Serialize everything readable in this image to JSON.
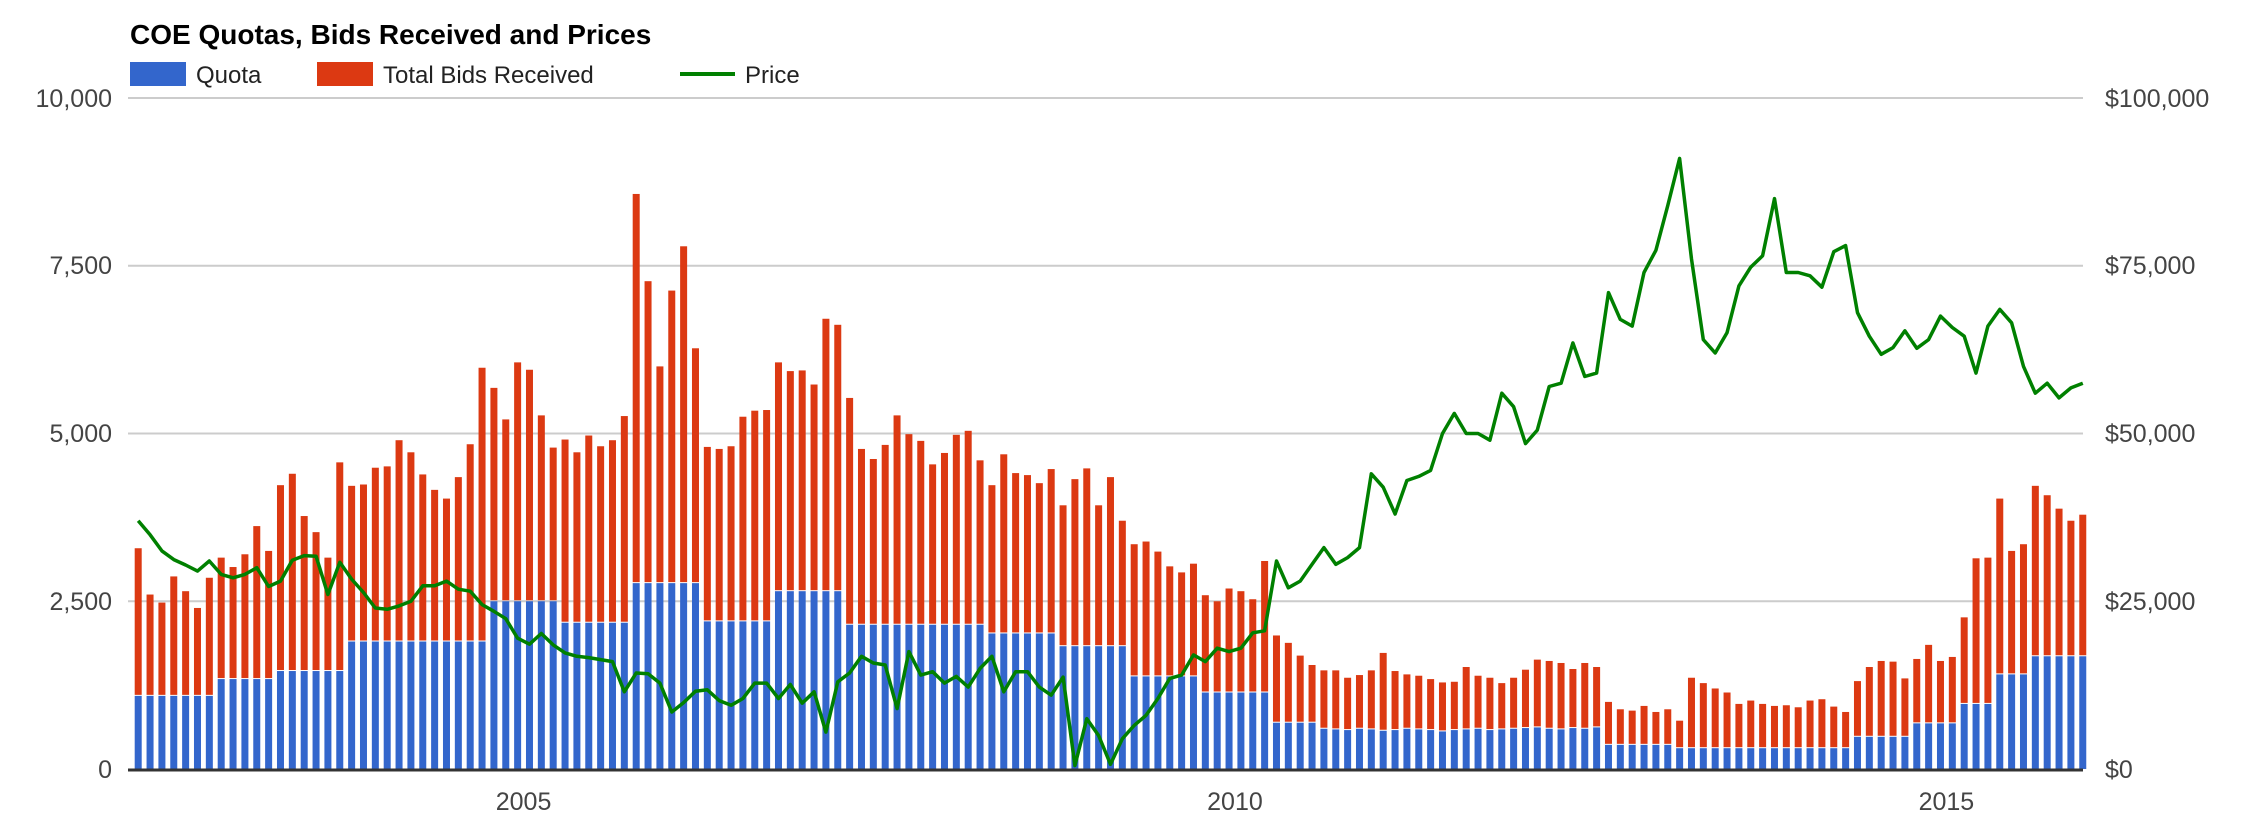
{
  "chart_data": {
    "type": "bar",
    "subtype": "stacked-bar-with-line-overlay",
    "title": "COE Quotas, Bids Received and Prices",
    "legend": {
      "placement": "top-left",
      "entries": [
        "Quota",
        "Total Bids Received",
        "Price"
      ]
    },
    "colors": {
      "quota": "#3366cc",
      "bids": "#dc3912",
      "price": "#008000",
      "grid": "#cccccc",
      "axis": "#333333"
    },
    "x": {
      "start": "2002-04",
      "interval": "monthly",
      "range": [
        2002.22,
        2015.96
      ],
      "tick_labels": [
        "2005",
        "2010",
        "2015"
      ],
      "tick_values": [
        2005,
        2010,
        2015
      ]
    },
    "y_left": {
      "label": "",
      "range": [
        0,
        10000
      ],
      "tick_labels": [
        "0",
        "2,500",
        "5,000",
        "7,500",
        "10,000"
      ],
      "tick_values": [
        0,
        2500,
        5000,
        7500,
        10000
      ]
    },
    "y_right": {
      "label": "",
      "range": [
        0,
        100000
      ],
      "tick_labels": [
        "$0",
        "$25,000",
        "$50,000",
        "$75,000",
        "$100,000"
      ],
      "tick_values": [
        0,
        25000,
        50000,
        75000,
        100000
      ]
    },
    "grid": true,
    "series": [
      {
        "name": "Quota",
        "axis": "left",
        "kind": "bar",
        "values": [
          1090,
          1090,
          1090,
          1090,
          1090,
          1090,
          1090,
          1340,
          1340,
          1340,
          1340,
          1340,
          1460,
          1460,
          1460,
          1460,
          1460,
          1460,
          1900,
          1900,
          1900,
          1900,
          1900,
          1900,
          1900,
          1900,
          1900,
          1900,
          1900,
          1900,
          2500,
          2500,
          2500,
          2500,
          2500,
          2500,
          2180,
          2180,
          2180,
          2180,
          2180,
          2180,
          2770,
          2770,
          2770,
          2770,
          2770,
          2770,
          2200,
          2200,
          2200,
          2200,
          2200,
          2200,
          2650,
          2650,
          2650,
          2650,
          2650,
          2650,
          2150,
          2150,
          2150,
          2150,
          2150,
          2150,
          2150,
          2150,
          2150,
          2150,
          2150,
          2150,
          2020,
          2020,
          2020,
          2020,
          2020,
          2020,
          1830,
          1830,
          1830,
          1830,
          1830,
          1830,
          1380,
          1380,
          1380,
          1380,
          1380,
          1380,
          1140,
          1140,
          1140,
          1140,
          1140,
          1140,
          690,
          690,
          690,
          690,
          600,
          590,
          580,
          600,
          590,
          570,
          580,
          600,
          590,
          580,
          560,
          580,
          590,
          600,
          580,
          590,
          600,
          610,
          620,
          600,
          590,
          610,
          600,
          620,
          360,
          360,
          360,
          360,
          360,
          360,
          310,
          310,
          310,
          310,
          310,
          310,
          310,
          310,
          310,
          310,
          310,
          310,
          310,
          310,
          310,
          480,
          480,
          480,
          480,
          480,
          680,
          680,
          680,
          680,
          970,
          970,
          970,
          1410,
          1410,
          1410,
          1680,
          1680,
          1680,
          1680,
          1680
        ]
      },
      {
        "name": "Total Bids Received",
        "axis": "left",
        "kind": "bar",
        "values": [
          3290,
          2600,
          2480,
          2870,
          2650,
          2400,
          2850,
          3150,
          3010,
          3200,
          3620,
          3250,
          4230,
          4400,
          3770,
          3530,
          3150,
          4570,
          4220,
          4240,
          4490,
          4510,
          4900,
          4720,
          4390,
          4160,
          4030,
          4350,
          4840,
          5980,
          5680,
          5210,
          6060,
          5950,
          5270,
          4790,
          4910,
          4720,
          4970,
          4810,
          4900,
          5260,
          8570,
          7270,
          6000,
          7130,
          7790,
          6270,
          4800,
          4770,
          4810,
          5250,
          5340,
          5350,
          6060,
          5930,
          5940,
          5730,
          6710,
          6620,
          5530,
          4770,
          4620,
          4830,
          5270,
          4990,
          4890,
          4540,
          4710,
          4980,
          5040,
          4600,
          4230,
          4690,
          4410,
          4380,
          4260,
          4470,
          3930,
          4320,
          4480,
          3930,
          4350,
          3700,
          3350,
          3390,
          3240,
          3020,
          2930,
          3060,
          2590,
          2500,
          2690,
          2650,
          2530,
          3100,
          1990,
          1880,
          1690,
          1550,
          1470,
          1470,
          1360,
          1400,
          1470,
          1730,
          1460,
          1410,
          1390,
          1340,
          1290,
          1300,
          1520,
          1390,
          1360,
          1280,
          1360,
          1480,
          1630,
          1610,
          1580,
          1490,
          1580,
          1520,
          1000,
          890,
          870,
          940,
          850,
          890,
          720,
          1360,
          1280,
          1200,
          1140,
          970,
          1020,
          970,
          940,
          950,
          920,
          1020,
          1040,
          930,
          850,
          1310,
          1520,
          1610,
          1600,
          1350,
          1640,
          1850,
          1610,
          1670,
          2260,
          3140,
          3150,
          4030,
          3250,
          3350,
          4220,
          4080,
          3880,
          3700,
          3790
        ]
      },
      {
        "name": "Price",
        "axis": "right",
        "kind": "line",
        "values": [
          37000,
          34900,
          32500,
          31200,
          30400,
          29500,
          31000,
          29000,
          28500,
          29000,
          30000,
          27200,
          28000,
          31100,
          31800,
          31700,
          26000,
          30800,
          28300,
          26300,
          24000,
          23800,
          24300,
          25000,
          27300,
          27300,
          28000,
          26800,
          26500,
          24500,
          23500,
          22400,
          19500,
          18600,
          20200,
          18500,
          17300,
          16800,
          16600,
          16300,
          16000,
          11500,
          14300,
          14200,
          12800,
          8500,
          9900,
          11600,
          11800,
          10200,
          9500,
          10500,
          12800,
          12800,
          10500,
          12600,
          9800,
          11500,
          5500,
          13000,
          14300,
          16800,
          15800,
          15500,
          9000,
          17500,
          14000,
          14500,
          12800,
          13800,
          12200,
          15000,
          16800,
          11500,
          14500,
          14500,
          12200,
          11000,
          13700,
          500,
          7500,
          5000,
          700,
          4500,
          6500,
          8000,
          10500,
          13500,
          14000,
          17000,
          16000,
          18000,
          17500,
          18000,
          20300,
          20600,
          31000,
          27000,
          28000,
          30500,
          33000,
          30500,
          31500,
          33000,
          44000,
          42000,
          38000,
          43000,
          43600,
          44500,
          50000,
          53000,
          50000,
          50000,
          49000,
          56000,
          54000,
          48500,
          50500,
          57000,
          57500,
          63500,
          58500,
          59000,
          71000,
          67000,
          66000,
          74000,
          77300,
          84000,
          91000,
          76000,
          64000,
          62000,
          65000,
          72000,
          74800,
          76500,
          85000,
          74000,
          74000,
          73500,
          71800,
          77100,
          78000,
          68000,
          64500,
          61800,
          62800,
          65300,
          62700,
          64000,
          67500,
          65800,
          64500,
          59000,
          66000,
          68500,
          66500,
          60000,
          56000,
          57500,
          55300,
          56800,
          57500
        ]
      }
    ]
  }
}
